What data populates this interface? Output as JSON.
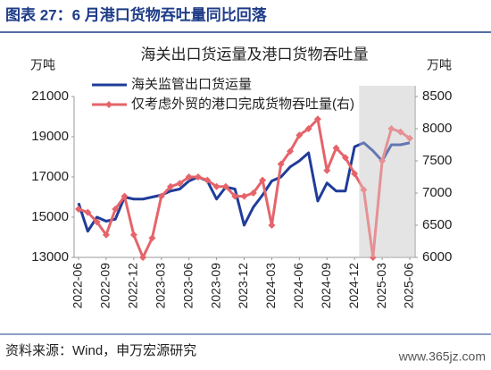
{
  "header": {
    "title": "图表 27：6 月港口货物吞吐量同比回落"
  },
  "chart_data": {
    "type": "line",
    "title": "海关出口货运量及港口货物吞吐量",
    "ylabel": "万吨",
    "y2label": "万吨",
    "categories": [
      "2022-06",
      null,
      null,
      "2022-09",
      null,
      null,
      "2022-12",
      null,
      null,
      "2023-03",
      null,
      null,
      "2023-06",
      null,
      null,
      "2023-09",
      null,
      null,
      "2023-12",
      null,
      null,
      "2024-03",
      null,
      null,
      "2024-06",
      null,
      null,
      "2024-09",
      null,
      null,
      "2024-12",
      null,
      null,
      "2025-03",
      null,
      null,
      "2025-06"
    ],
    "series": [
      {
        "name": "海关监管出口货运量",
        "color": "#1f3c99",
        "axis": "y",
        "values": [
          15700,
          14300,
          15000,
          14800,
          14900,
          16000,
          15900,
          15900,
          16000,
          16100,
          16300,
          16400,
          16800,
          17000,
          16800,
          15900,
          16500,
          16400,
          14600,
          15500,
          16100,
          16800,
          17000,
          17500,
          17800,
          18200,
          15800,
          16700,
          16300,
          16300,
          18500,
          18700,
          18300,
          17800,
          18600,
          18600,
          18700
        ]
      },
      {
        "name": "仅考虑外贸的港口完成货物吞吐量(右)",
        "color": "#e5646a",
        "axis": "y2",
        "values": [
          6750,
          6700,
          6550,
          6350,
          6750,
          6950,
          6350,
          6000,
          6300,
          6950,
          7100,
          7150,
          7250,
          7250,
          7200,
          7100,
          7100,
          6950,
          6950,
          7000,
          7200,
          6500,
          7450,
          7650,
          7900,
          8000,
          8150,
          7350,
          7700,
          7550,
          7300,
          7050,
          6000,
          7500,
          8000,
          7950,
          7850
        ]
      }
    ],
    "ylim": [
      13000,
      21000
    ],
    "yticks": [
      13000,
      15000,
      17000,
      19000,
      21000
    ],
    "y2lim": [
      6000,
      8500
    ],
    "y2ticks": [
      6000,
      6500,
      7000,
      7500,
      8000,
      8500
    ]
  },
  "footer": {
    "source": "资料来源：Wind，申万宏源研究",
    "watermark": "www.365jz.com"
  }
}
